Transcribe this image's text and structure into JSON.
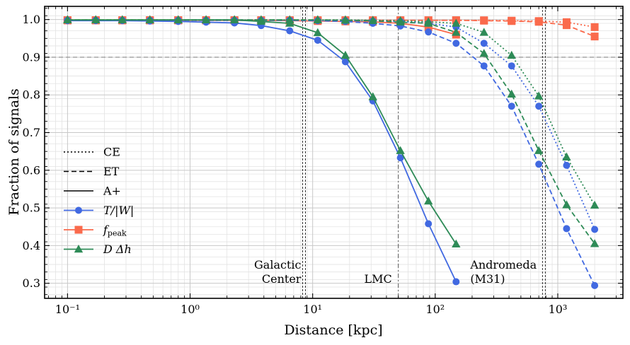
{
  "chart_data": {
    "type": "line",
    "xlabel": "Distance [kpc]",
    "ylabel": "Fraction of signals",
    "xscale": "log",
    "xlim": [
      0.065,
      3400
    ],
    "ylim": [
      0.26,
      1.035
    ],
    "xticks": [
      0.1,
      1,
      10,
      100,
      1000
    ],
    "xtick_labels": [
      "10⁻¹",
      "10⁰",
      "10¹",
      "10²",
      "10³"
    ],
    "yticks": [
      0.3,
      0.4,
      0.5,
      0.6,
      0.7,
      0.8,
      0.9,
      1.0
    ],
    "ytick_labels": [
      "0.3",
      "0.4",
      "0.5",
      "0.6",
      "0.7",
      "0.8",
      "0.9",
      "1.0"
    ],
    "grid": true,
    "threshold_line": 0.9,
    "reference_lines": [
      {
        "x": 8.5,
        "label": [
          "Galactic",
          "Center"
        ]
      },
      {
        "x": 50,
        "label": [
          "LMC"
        ]
      },
      {
        "x": 770,
        "label": [
          "Andromeda",
          "(M31)"
        ]
      }
    ],
    "legend": {
      "placement": "center-left",
      "detectors": [
        {
          "label": "CE",
          "dash": "dotted"
        },
        {
          "label": "ET",
          "dash": "dashed"
        },
        {
          "label": "A+",
          "dash": "solid"
        }
      ],
      "methods": [
        {
          "label": "T/|W|",
          "marker": "circle"
        },
        {
          "label": "f_peak",
          "marker": "square"
        },
        {
          "label": "D Δh",
          "marker": "triangle"
        }
      ]
    },
    "colors": {
      "T/|W|": "#4169e1",
      "f_peak": "#fa6a4c",
      "D Δh": "#2e8b57",
      "threshold": "#888888"
    },
    "series": [
      {
        "method": "f_peak",
        "detector": "A+",
        "x": [
          0.1,
          0.17,
          0.28,
          0.47,
          0.8,
          1.35,
          2.3,
          3.8,
          6.5,
          11,
          18.5,
          31,
          52,
          88,
          148
        ],
        "y": [
          0.998,
          0.998,
          0.998,
          0.998,
          0.998,
          0.998,
          0.998,
          0.998,
          0.997,
          0.996,
          0.995,
          0.994,
          0.99,
          0.98,
          0.96
        ]
      },
      {
        "method": "f_peak",
        "detector": "ET",
        "x": [
          0.1,
          0.17,
          0.28,
          0.47,
          0.8,
          1.35,
          2.3,
          3.8,
          6.5,
          11,
          18.5,
          31,
          52,
          88,
          148,
          250,
          420,
          700,
          1180,
          2000
        ],
        "y": [
          0.998,
          0.998,
          0.998,
          0.998,
          0.998,
          0.998,
          0.998,
          0.998,
          0.998,
          0.998,
          0.998,
          0.998,
          0.998,
          0.998,
          0.998,
          0.997,
          0.996,
          0.994,
          0.985,
          0.955
        ]
      },
      {
        "method": "f_peak",
        "detector": "CE",
        "x": [
          0.1,
          0.17,
          0.28,
          0.47,
          0.8,
          1.35,
          2.3,
          3.8,
          6.5,
          11,
          18.5,
          31,
          52,
          88,
          148,
          250,
          420,
          700,
          1180,
          2000
        ],
        "y": [
          0.998,
          0.998,
          0.998,
          0.998,
          0.998,
          0.998,
          0.998,
          0.998,
          0.998,
          0.998,
          0.998,
          0.998,
          0.998,
          0.998,
          0.998,
          0.998,
          0.997,
          0.996,
          0.993,
          0.98
        ]
      },
      {
        "method": "T/|W|",
        "detector": "CE",
        "x": [
          0.1,
          0.17,
          0.28,
          0.47,
          0.8,
          1.35,
          2.3,
          3.8,
          6.5,
          11,
          18.5,
          31,
          52,
          88,
          148,
          250,
          420,
          700,
          1180,
          2000
        ],
        "y": [
          0.998,
          0.998,
          0.998,
          0.998,
          0.998,
          0.998,
          0.998,
          0.998,
          0.998,
          0.997,
          0.997,
          0.996,
          0.995,
          0.99,
          0.98,
          0.937,
          0.877,
          0.77,
          0.613,
          0.443
        ]
      },
      {
        "method": "T/|W|",
        "detector": "ET",
        "x": [
          0.1,
          0.17,
          0.28,
          0.47,
          0.8,
          1.35,
          2.3,
          3.8,
          6.5,
          11,
          18.5,
          31,
          52,
          88,
          148,
          250,
          420,
          700,
          1180,
          2000
        ],
        "y": [
          0.998,
          0.998,
          0.998,
          0.998,
          0.998,
          0.998,
          0.998,
          0.998,
          0.998,
          0.997,
          0.995,
          0.99,
          0.983,
          0.967,
          0.937,
          0.877,
          0.77,
          0.616,
          0.445,
          0.294
        ]
      },
      {
        "method": "T/|W|",
        "detector": "A+",
        "x": [
          0.1,
          0.17,
          0.28,
          0.47,
          0.8,
          1.35,
          2.3,
          3.8,
          6.5,
          11,
          18.5,
          31,
          52,
          88,
          148
        ],
        "y": [
          0.997,
          0.997,
          0.997,
          0.996,
          0.995,
          0.993,
          0.991,
          0.984,
          0.97,
          0.945,
          0.888,
          0.784,
          0.633,
          0.458,
          0.304
        ]
      },
      {
        "method": "D Δh",
        "detector": "CE",
        "x": [
          0.1,
          0.17,
          0.28,
          0.47,
          0.8,
          1.35,
          2.3,
          3.8,
          6.5,
          11,
          18.5,
          31,
          52,
          88,
          148,
          250,
          420,
          700,
          1180,
          2000
        ],
        "y": [
          0.999,
          0.999,
          0.999,
          0.999,
          0.999,
          0.999,
          0.999,
          0.999,
          0.999,
          0.999,
          0.999,
          0.998,
          0.997,
          0.994,
          0.99,
          0.966,
          0.905,
          0.797,
          0.635,
          0.507
        ]
      },
      {
        "method": "D Δh",
        "detector": "ET",
        "x": [
          0.1,
          0.17,
          0.28,
          0.47,
          0.8,
          1.35,
          2.3,
          3.8,
          6.5,
          11,
          18.5,
          31,
          52,
          88,
          148,
          250,
          420,
          700,
          1180,
          2000
        ],
        "y": [
          0.999,
          0.999,
          0.999,
          0.999,
          0.999,
          0.999,
          0.999,
          0.999,
          0.999,
          0.999,
          0.998,
          0.997,
          0.993,
          0.99,
          0.966,
          0.91,
          0.802,
          0.652,
          0.508,
          0.405
        ]
      },
      {
        "method": "D Δh",
        "detector": "A+",
        "x": [
          0.1,
          0.17,
          0.28,
          0.47,
          0.8,
          1.35,
          2.3,
          3.8,
          6.5,
          11,
          18.5,
          31,
          52,
          88,
          148
        ],
        "y": [
          0.999,
          0.999,
          0.999,
          0.999,
          0.999,
          0.999,
          0.999,
          0.995,
          0.99,
          0.965,
          0.905,
          0.795,
          0.652,
          0.518,
          0.404
        ]
      }
    ]
  }
}
